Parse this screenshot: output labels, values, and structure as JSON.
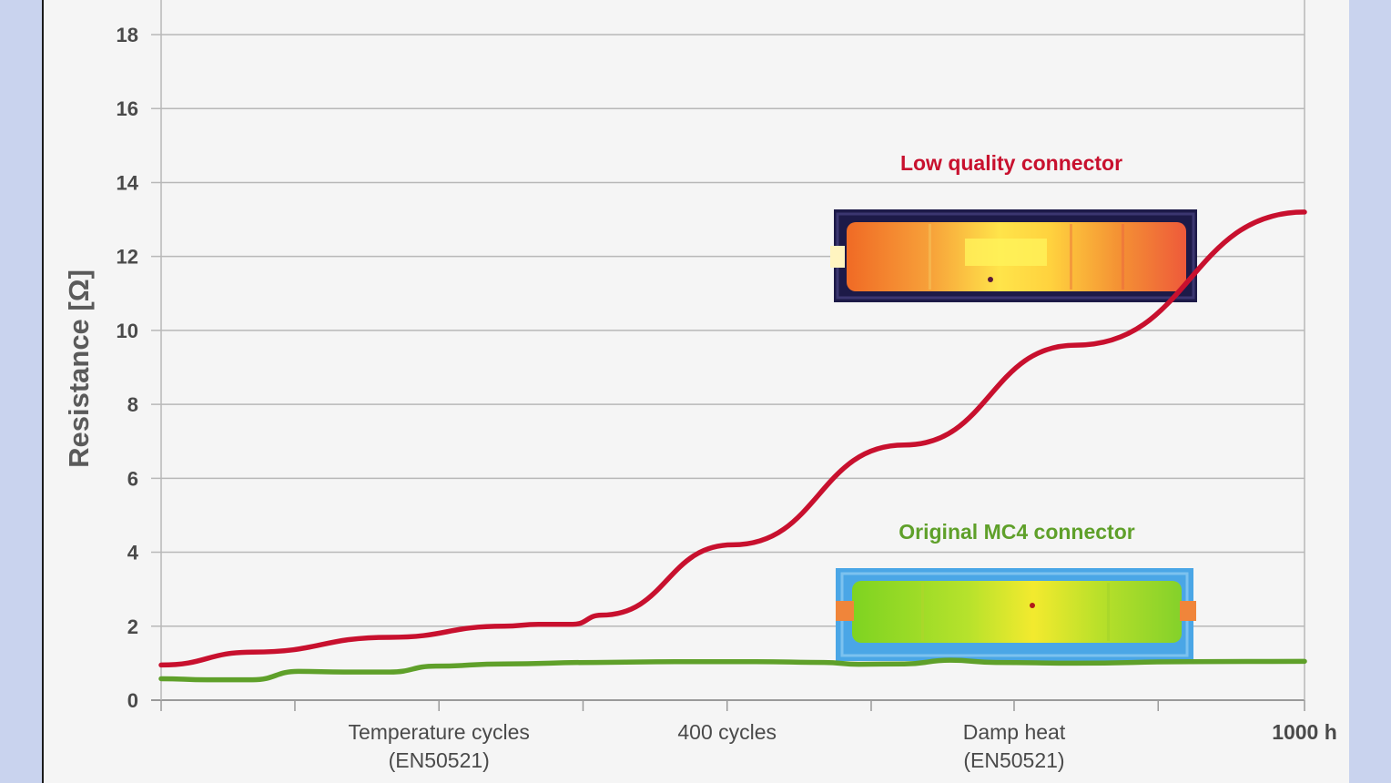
{
  "chart_data": {
    "type": "line",
    "ylabel": "Resistance [Ω]",
    "xlabel": "",
    "ylim": [
      0,
      18
    ],
    "yticks": [
      0,
      2,
      4,
      6,
      8,
      10,
      12,
      14,
      16,
      18
    ],
    "xlim": [
      0,
      1000
    ],
    "grid": "horizontal",
    "x_tick_positions": [
      0,
      117,
      243,
      369,
      495,
      621,
      746,
      872,
      1000
    ],
    "x_labels": [
      {
        "x": 243,
        "lines": [
          "Temperature cycles",
          "(EN50521)"
        ]
      },
      {
        "x": 495,
        "lines": [
          "400 cycles"
        ]
      },
      {
        "x": 746,
        "lines": [
          "Damp heat",
          "(EN50521)"
        ]
      },
      {
        "x": 1000,
        "lines": [
          "1000 h"
        ],
        "bold": true
      }
    ],
    "series": [
      {
        "name": "Low quality connector",
        "color": "#c8102e",
        "x": [
          0,
          80,
          200,
          300,
          330,
          360,
          385,
          500,
          650,
          800,
          1000
        ],
        "y": [
          0.95,
          1.3,
          1.7,
          2.0,
          2.05,
          2.05,
          2.3,
          4.2,
          6.9,
          9.6,
          13.2
        ]
      },
      {
        "name": "Original MC4 connector",
        "color": "#5fa02a",
        "x": [
          0,
          40,
          80,
          120,
          160,
          200,
          240,
          300,
          380,
          450,
          520,
          580,
          610,
          650,
          690,
          730,
          800,
          900,
          1000
        ],
        "y": [
          0.58,
          0.55,
          0.55,
          0.78,
          0.76,
          0.76,
          0.92,
          0.98,
          1.02,
          1.04,
          1.04,
          1.02,
          0.97,
          0.98,
          1.08,
          1.02,
          1.0,
          1.04,
          1.05
        ]
      }
    ],
    "annotations": [
      {
        "text": "Low quality connector",
        "color": "#c8102e"
      },
      {
        "text": "Original MC4 connector",
        "color": "#5fa02a"
      }
    ]
  }
}
